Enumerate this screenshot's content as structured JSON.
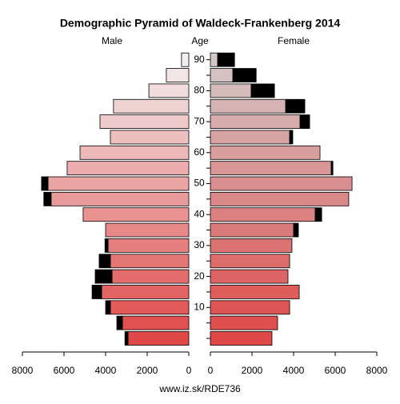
{
  "chart_data": {
    "type": "pyramid",
    "title": "Demographic Pyramid of Waldeck-Frankenberg 2014",
    "male_label": "Male",
    "female_label": "Female",
    "age_label": "Age",
    "footer": "www.iz.sk/RDE736",
    "categories": [
      null,
      null,
      "10",
      null,
      "20",
      null,
      "30",
      null,
      "40",
      null,
      "50",
      null,
      "60",
      null,
      "70",
      null,
      "80",
      null,
      "90"
    ],
    "male": {
      "values": [
        2920,
        3190,
        3770,
        4190,
        3690,
        3770,
        3880,
        4000,
        5080,
        6620,
        6770,
        5850,
        5230,
        3770,
        4270,
        3620,
        1920,
        1080,
        350
      ],
      "extra": [
        150,
        270,
        230,
        460,
        810,
        540,
        150,
        0,
        0,
        350,
        310,
        0,
        0,
        0,
        0,
        0,
        0,
        0,
        0
      ],
      "color_young": "#e04848",
      "color_old": "#f2eeee"
    },
    "female": {
      "values": [
        2960,
        3230,
        3810,
        4270,
        3730,
        3810,
        3920,
        4000,
        5040,
        6650,
        6810,
        5810,
        5270,
        3810,
        4310,
        3620,
        1960,
        1080,
        350
      ],
      "extra": [
        0,
        0,
        0,
        0,
        0,
        0,
        0,
        230,
        310,
        0,
        0,
        80,
        0,
        150,
        460,
        920,
        1120,
        1120,
        810
      ],
      "color_young": "#e04848",
      "color_old": "#d4c8c8"
    },
    "extra_color": "#000000",
    "xlim": [
      0,
      8000
    ],
    "xticks": [
      0,
      2000,
      4000,
      6000,
      8000
    ]
  }
}
